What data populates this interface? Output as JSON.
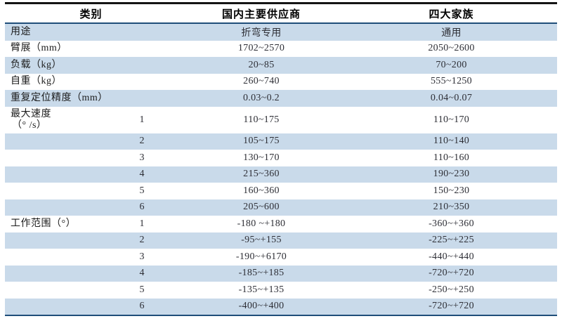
{
  "colors": {
    "stripe_blue": "#c9daea",
    "rule_navy": "#1f4e79",
    "rule_top_black": "#141414",
    "header_text": "#000000",
    "value_text": "#2e2f36"
  },
  "chart_data": {
    "type": "table",
    "columns": [
      "类别",
      "国内主要供应商",
      "四大家族"
    ],
    "rows": [
      {
        "label": "用途",
        "axis": "",
        "domestic": "折弯专用",
        "bigfour": "通用"
      },
      {
        "label": "臂展（mm）",
        "axis": "",
        "domestic": "1702~2570",
        "bigfour": "2050~2600"
      },
      {
        "label": "负载（kg）",
        "axis": "",
        "domestic": "20~85",
        "bigfour": "70~200"
      },
      {
        "label": "自重（kg）",
        "axis": "",
        "domestic": "260~740",
        "bigfour": "555~1250"
      },
      {
        "label": "重复定位精度（mm）",
        "axis": "",
        "domestic": "0.03~0.2",
        "bigfour": "0.04~0.07"
      },
      {
        "label": "最大速度",
        "label2": "（° /s）",
        "axis": "1",
        "domestic": "110~175",
        "bigfour": "110~170"
      },
      {
        "label": "",
        "axis": "2",
        "domestic": "105~175",
        "bigfour": "110~140"
      },
      {
        "label": "",
        "axis": "3",
        "domestic": "130~170",
        "bigfour": "110~160"
      },
      {
        "label": "",
        "axis": "4",
        "domestic": "215~360",
        "bigfour": "190~230"
      },
      {
        "label": "",
        "axis": "5",
        "domestic": "160~360",
        "bigfour": "150~230"
      },
      {
        "label": "",
        "axis": "6",
        "domestic": "205~600",
        "bigfour": "210~350"
      },
      {
        "label": "工作范围（°）",
        "axis": "1",
        "domestic": "-180 ~+180",
        "bigfour": "-360~+360"
      },
      {
        "label": "",
        "axis": "2",
        "domestic": "-95~+155",
        "bigfour": "-225~+225"
      },
      {
        "label": "",
        "axis": "3",
        "domestic": "-190~+6170",
        "bigfour": "-440~+440"
      },
      {
        "label": "",
        "axis": "4",
        "domestic": "-185~+185",
        "bigfour": "-720~+720"
      },
      {
        "label": "",
        "axis": "5",
        "domestic": "-135~+135",
        "bigfour": "-250~+250"
      },
      {
        "label": "",
        "axis": "6",
        "domestic": "-400~+400",
        "bigfour": "-720~+720"
      }
    ]
  }
}
